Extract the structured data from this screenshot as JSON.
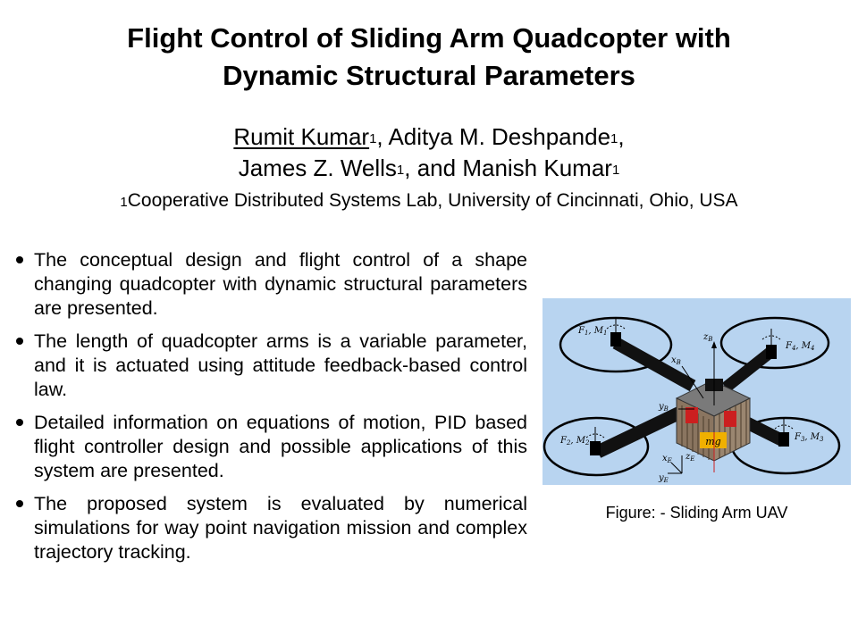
{
  "title": {
    "line1": "Flight Control of Sliding Arm Quadcopter with",
    "line2": "Dynamic Structural Parameters"
  },
  "authors": [
    {
      "name": "Rumit Kumar",
      "sup": "1",
      "sep": ", "
    },
    {
      "name": "Aditya M. Deshpande",
      "sup": "1",
      "sep": ","
    },
    {
      "name": "James Z. Wells",
      "sup": "1",
      "sep": ", and "
    },
    {
      "name": "Manish Kumar",
      "sup": "1",
      "sep": ""
    }
  ],
  "affiliation": {
    "sup": "1",
    "text": "Cooperative Distributed Systems Lab, University of Cincinnati, Ohio, USA"
  },
  "bullets": [
    "The conceptual design and flight control of a shape changing quadcopter with dynamic structural parameters are presented.",
    "The length of quadcopter arms is a variable parameter, and it is actuated using attitude feedback-based control law.",
    "Detailed information on equations of motion, PID based flight controller design and possible applications of this system are presented.",
    "The proposed system is evaluated by numerical simulations for way point navigation mission and complex trajectory tracking."
  ],
  "figure": {
    "caption": "Figure: - Sliding Arm UAV",
    "background": "#b8d4f0",
    "labels": {
      "f1": "F",
      "f1_sub": "1",
      "m1": "M",
      "m1_sub": "1",
      "f2": "F",
      "f2_sub": "2",
      "m2": "M",
      "m2_sub": "2",
      "f3": "F",
      "f3_sub": "3",
      "m3": "M",
      "m3_sub": "3",
      "f4": "F",
      "f4_sub": "4",
      "m4": "M",
      "m4_sub": "4",
      "zb": "z",
      "zb_sub": "B",
      "xb": "x",
      "xb_sub": "B",
      "yb": "y",
      "yb_sub": "B",
      "xe": "x",
      "xe_sub": "E",
      "ye": "y",
      "ye_sub": "E",
      "ze": "z",
      "ze_sub": "E",
      "mg": "mg"
    }
  }
}
